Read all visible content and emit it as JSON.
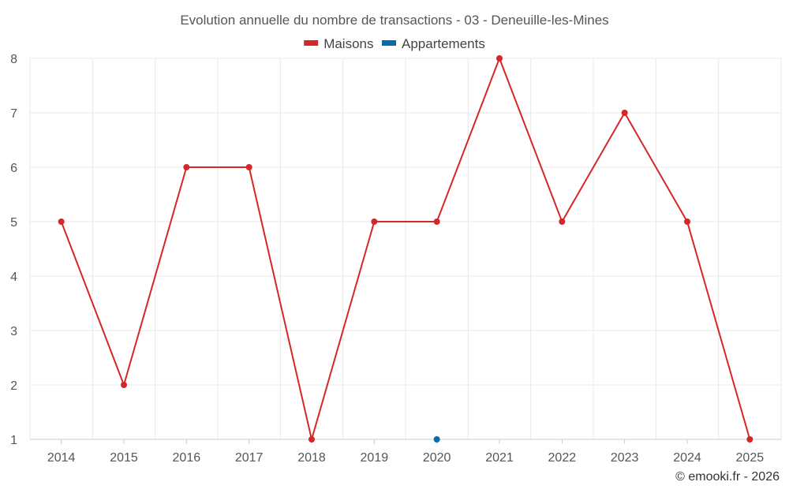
{
  "chart_data": {
    "type": "line",
    "title": "Evolution annuelle du nombre de transactions - 03 - Deneuille-les-Mines",
    "x": [
      "2014",
      "2015",
      "2016",
      "2017",
      "2018",
      "2019",
      "2020",
      "2021",
      "2022",
      "2023",
      "2024",
      "2025"
    ],
    "series": [
      {
        "name": "Maisons",
        "color": "#d62728",
        "values": [
          5,
          2,
          6,
          6,
          1,
          5,
          5,
          8,
          5,
          7,
          5,
          1
        ]
      },
      {
        "name": "Appartements",
        "color": "#0a6bab",
        "values": [
          null,
          null,
          null,
          null,
          null,
          null,
          1,
          null,
          null,
          null,
          null,
          null
        ]
      }
    ],
    "yticks": [
      "1",
      "2",
      "3",
      "4",
      "5",
      "6",
      "7",
      "8"
    ],
    "ylim": [
      1,
      8
    ],
    "grid": true,
    "legend_position": "top-center",
    "credit": "© emooki.fr - 2026"
  }
}
